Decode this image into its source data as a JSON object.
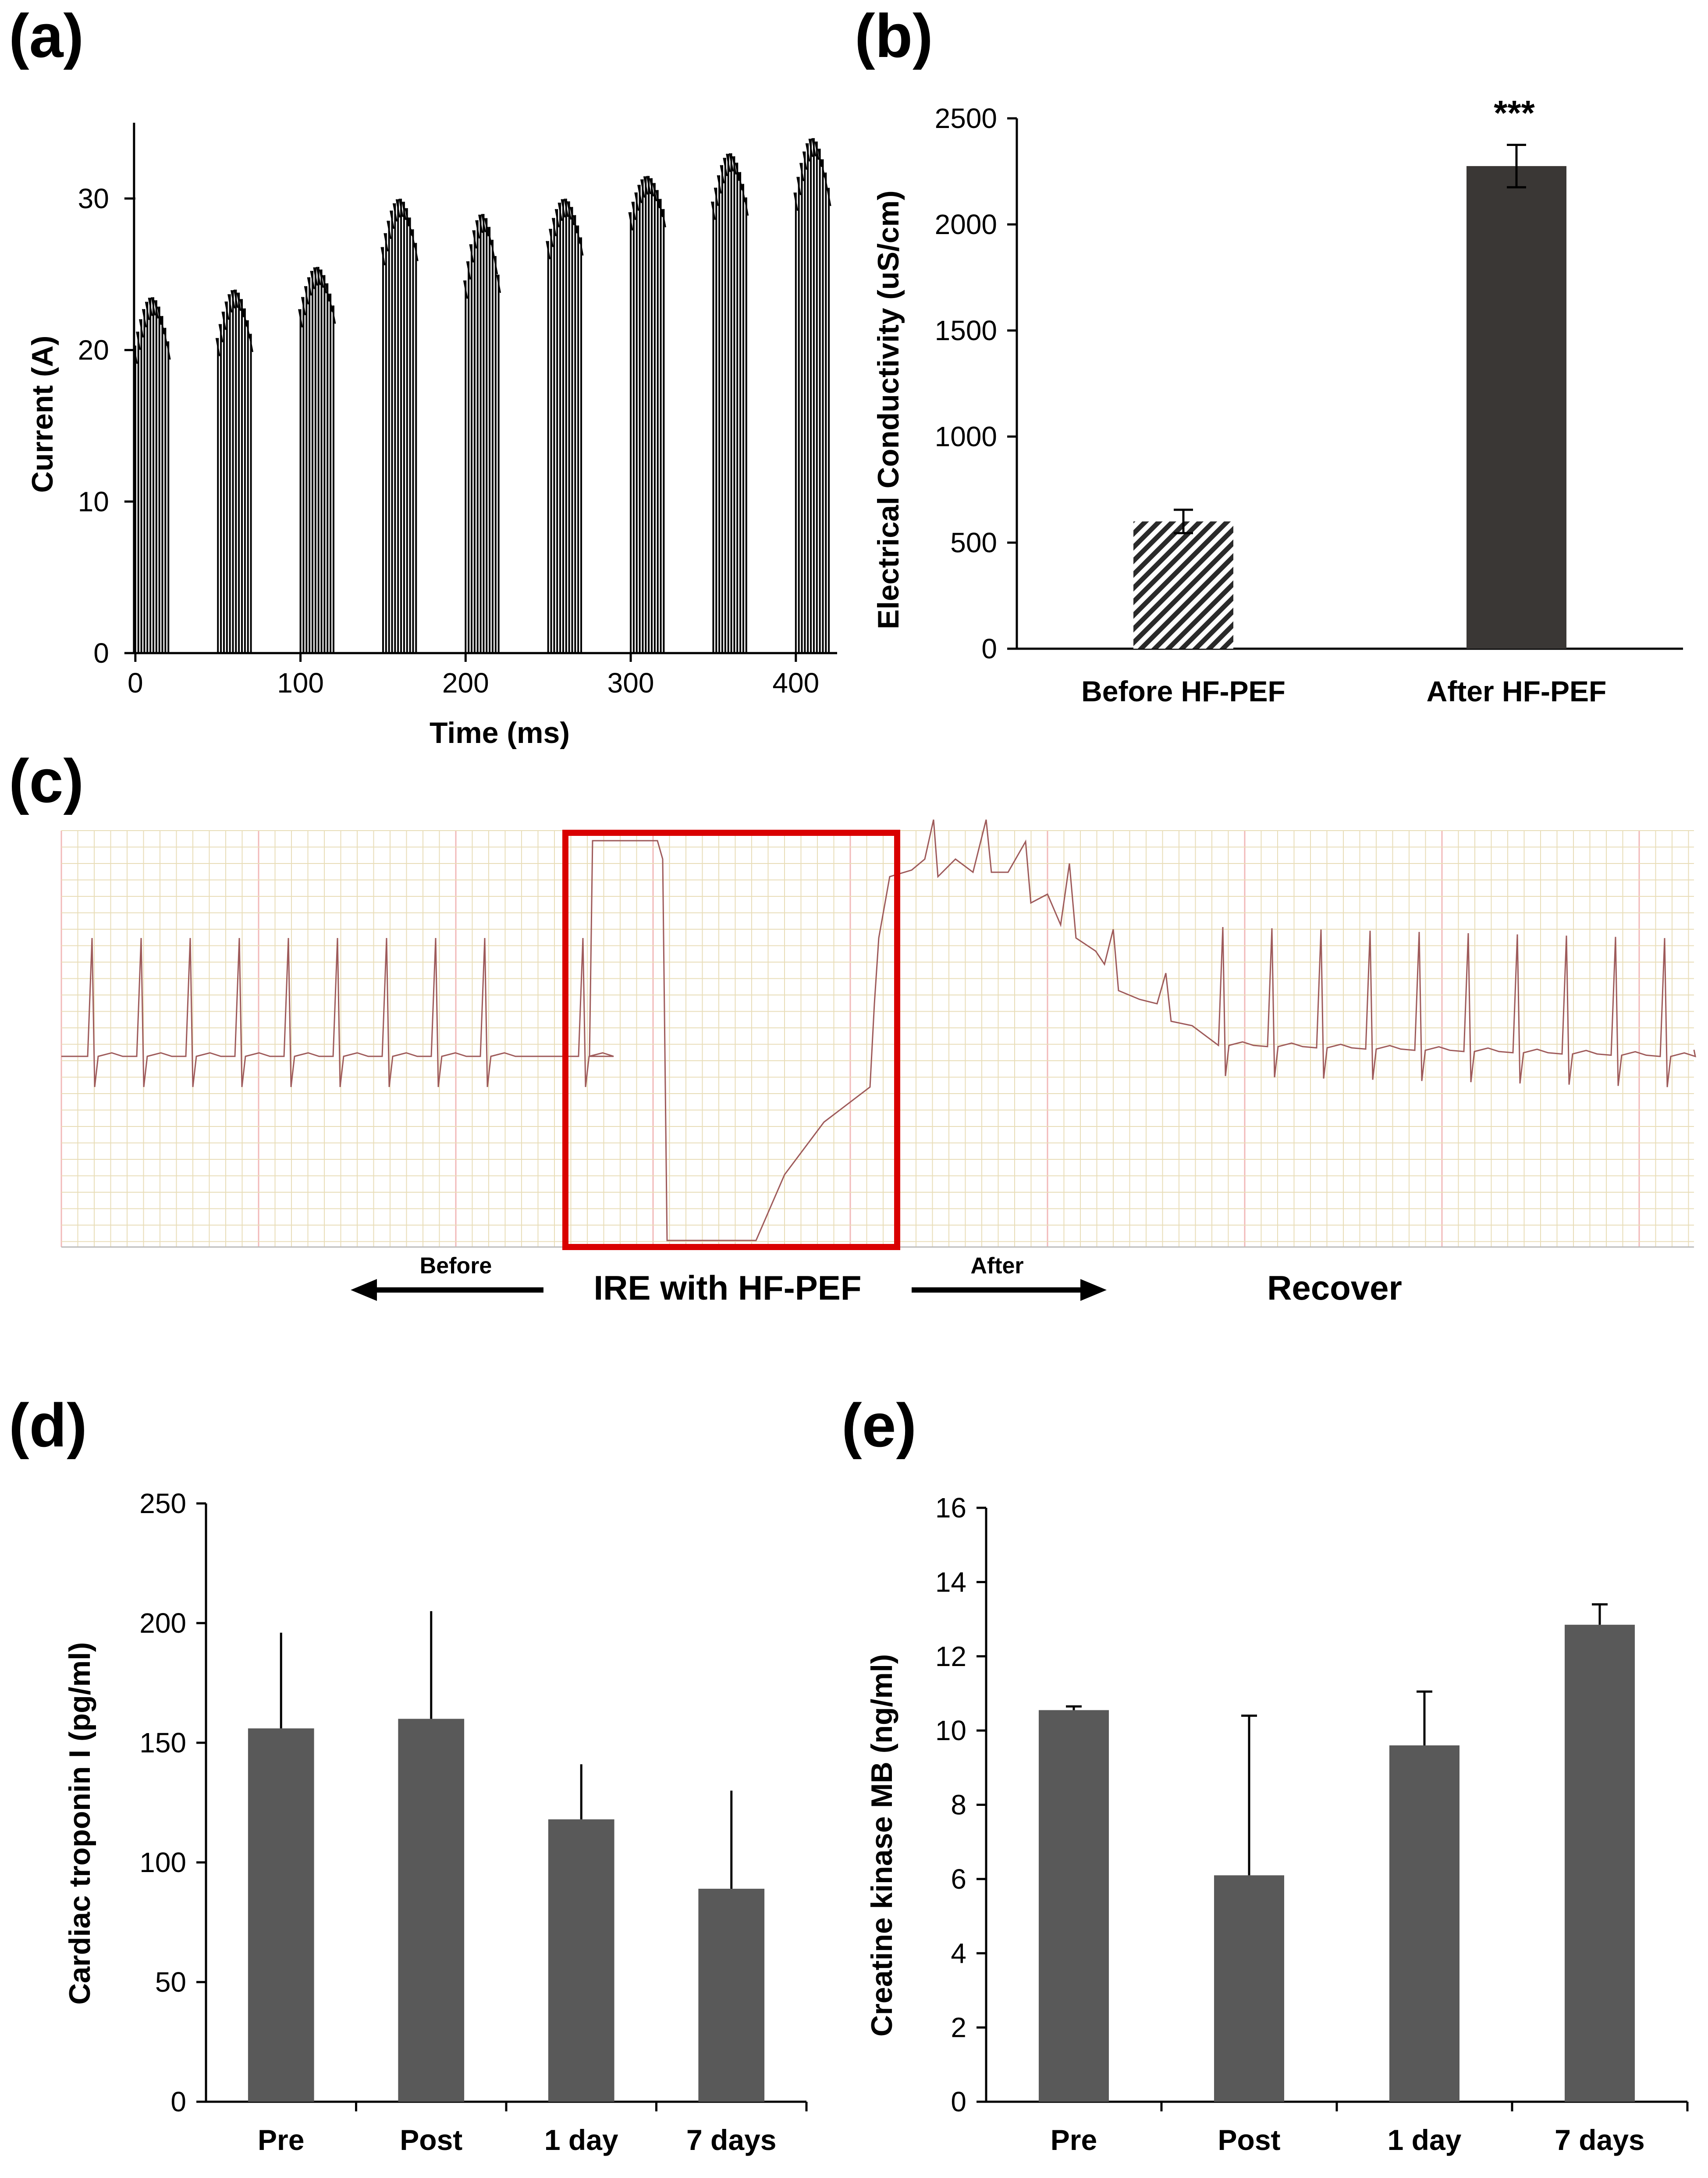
{
  "colors": {
    "axis": "#000000",
    "bar_d": "#595959",
    "bar_e": "#595959",
    "bar_b_after": "#3a3735",
    "ecg_trace": "#9e5a5a",
    "grid_minor": "#e8ddb8",
    "grid_major": "#f2b8b8",
    "highlight_box": "#d90000"
  },
  "chart_data": [
    {
      "panel": "(a)",
      "type": "bar",
      "xlabel": "Time (ms)",
      "ylabel": "Current (A)",
      "xlim": [
        -5,
        425
      ],
      "ylim": [
        0,
        35
      ],
      "xticks": [
        "0",
        "100",
        "200",
        "300",
        "400"
      ],
      "yticks": [
        "0",
        "10",
        "20",
        "30"
      ],
      "pulse_bursts": [
        {
          "t_start": 0,
          "t_end": 20,
          "current_min": 19.5,
          "current_max": 23.5
        },
        {
          "t_start": 50,
          "t_end": 70,
          "current_min": 20.0,
          "current_max": 24.0
        },
        {
          "t_start": 100,
          "t_end": 120,
          "current_min": 22.0,
          "current_max": 25.5
        },
        {
          "t_start": 150,
          "t_end": 170,
          "current_min": 26.0,
          "current_max": 30.0
        },
        {
          "t_start": 200,
          "t_end": 220,
          "current_min": 23.5,
          "current_max": 29.0
        },
        {
          "t_start": 250,
          "t_end": 270,
          "current_min": 26.5,
          "current_max": 30.0
        },
        {
          "t_start": 300,
          "t_end": 320,
          "current_min": 28.5,
          "current_max": 31.5
        },
        {
          "t_start": 350,
          "t_end": 370,
          "current_min": 29.0,
          "current_max": 33.0
        },
        {
          "t_start": 400,
          "t_end": 420,
          "current_min": 29.5,
          "current_max": 34.0
        }
      ]
    },
    {
      "panel": "(b)",
      "type": "bar",
      "categories": [
        "Before HF-PEF",
        "After HF-PEF"
      ],
      "values": [
        600,
        2275
      ],
      "errors": [
        55,
        100
      ],
      "ylabel": "Electrical Conductivity (uS/cm)",
      "ylim": [
        0,
        2500
      ],
      "yticks": [
        "0",
        "500",
        "1000",
        "1500",
        "2000",
        "2500"
      ],
      "annotation": "***"
    },
    {
      "panel": "(c)",
      "type": "line",
      "labels": {
        "before": "Before",
        "ire": "IRE with HF-PEF",
        "after": "After",
        "recover": "Recover"
      }
    },
    {
      "panel": "(d)",
      "type": "bar",
      "categories": [
        "Pre",
        "Post",
        "1 day",
        "7 days"
      ],
      "values": [
        156,
        160,
        118,
        89
      ],
      "errors": [
        40,
        45,
        23,
        41
      ],
      "ylabel": "Cardiac troponin I (pg/ml)",
      "ylim": [
        0,
        250
      ],
      "yticks": [
        "0",
        "50",
        "100",
        "150",
        "200",
        "250"
      ]
    },
    {
      "panel": "(e)",
      "type": "bar",
      "categories": [
        "Pre",
        "Post",
        "1 day",
        "7 days"
      ],
      "values": [
        10.55,
        6.1,
        9.6,
        12.85
      ],
      "errors": [
        0.1,
        4.3,
        1.45,
        0.55
      ],
      "ylabel": "Creatine kinase MB (ng/ml)",
      "ylim": [
        0,
        16
      ],
      "yticks": [
        "0",
        "2",
        "4",
        "6",
        "8",
        "10",
        "12",
        "14",
        "16"
      ]
    }
  ]
}
